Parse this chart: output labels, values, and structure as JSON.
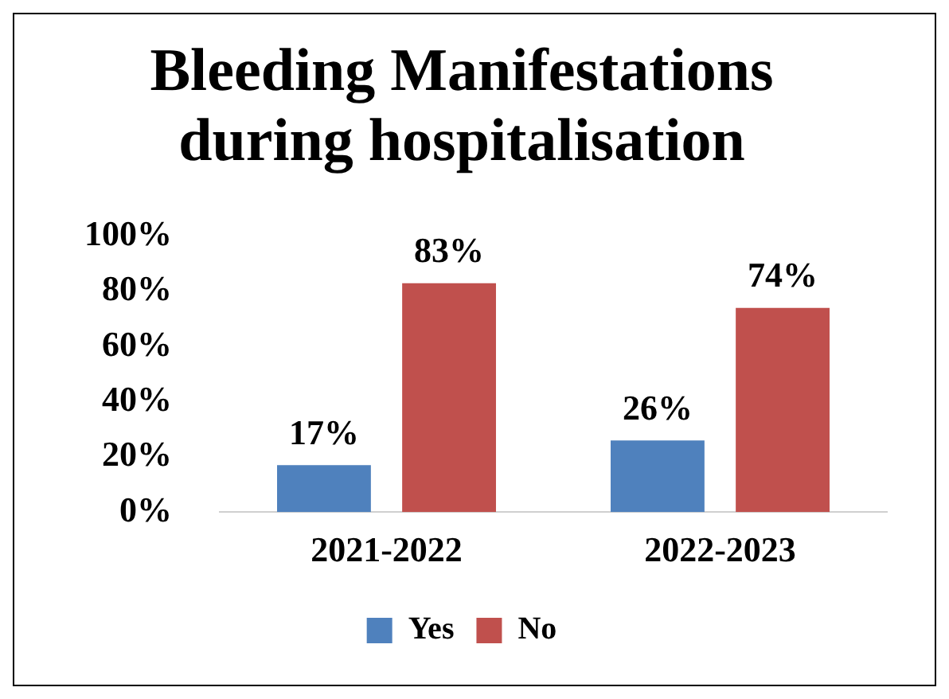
{
  "chart_data": {
    "type": "bar",
    "title": "Bleeding Manifestations during hospitalisation",
    "categories": [
      "2021-2022",
      "2022-2023"
    ],
    "series": [
      {
        "name": "Yes",
        "color": "#4f81bd",
        "values": [
          17,
          26
        ],
        "value_labels": [
          "17%",
          "26%"
        ]
      },
      {
        "name": "No",
        "color": "#c0504d",
        "values": [
          83,
          74
        ],
        "value_labels": [
          "83%",
          "74%"
        ]
      }
    ],
    "ylim": [
      0,
      100
    ],
    "yticks": [
      {
        "value": 0,
        "label": "0%"
      },
      {
        "value": 20,
        "label": "20%"
      },
      {
        "value": 40,
        "label": "40%"
      },
      {
        "value": 60,
        "label": "60%"
      },
      {
        "value": 80,
        "label": "80%"
      },
      {
        "value": 100,
        "label": "100%"
      }
    ],
    "grid": false,
    "legend": "bottom"
  }
}
